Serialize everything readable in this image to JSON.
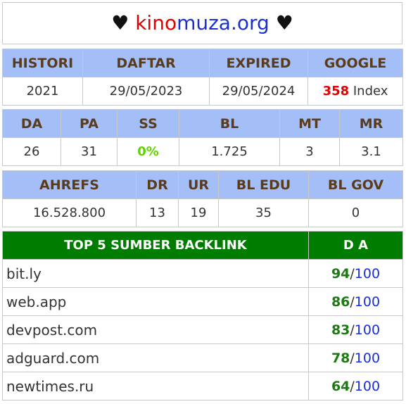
{
  "header": {
    "heart_left": "♥",
    "domain_part1": "kino",
    "domain_part2": "muza.org",
    "heart_right": "♥"
  },
  "table1": {
    "headers": [
      "HISTORI",
      "DAFTAR",
      "EXPIRED",
      "GOOGLE"
    ],
    "histori": "2021",
    "daftar": "29/05/2023",
    "expired": "29/05/2024",
    "google_count": "358",
    "google_label": "Index"
  },
  "table2": {
    "headers": [
      "DA",
      "PA",
      "SS",
      "BL",
      "MT",
      "MR"
    ],
    "values": [
      "26",
      "31",
      "0%",
      "1.725",
      "3",
      "3.1"
    ]
  },
  "table3": {
    "headers": [
      "AHREFS",
      "DR",
      "UR",
      "BL EDU",
      "BL GOV"
    ],
    "values": [
      "16.528.800",
      "13",
      "19",
      "35",
      "0"
    ]
  },
  "backlinks": {
    "header_title": "TOP 5 SUMBER BACKLINK",
    "header_da": "D A",
    "separator": "/",
    "rows": [
      {
        "site": "bit.ly",
        "da": "94",
        "max": "100"
      },
      {
        "site": "web.app",
        "da": "86",
        "max": "100"
      },
      {
        "site": "devpost.com",
        "da": "83",
        "max": "100"
      },
      {
        "site": "adguard.com",
        "da": "78",
        "max": "100"
      },
      {
        "site": "newtimes.ru",
        "da": "64",
        "max": "100"
      }
    ]
  },
  "colors": {
    "header_blue": "#a4bff7",
    "header_text": "#5a3b1c",
    "backlink_header_green": "#007d00",
    "accent_red": "#e30000",
    "accent_blue": "#1a2fd6",
    "da_green": "#1b7a12",
    "ss_green": "#5fd400"
  }
}
